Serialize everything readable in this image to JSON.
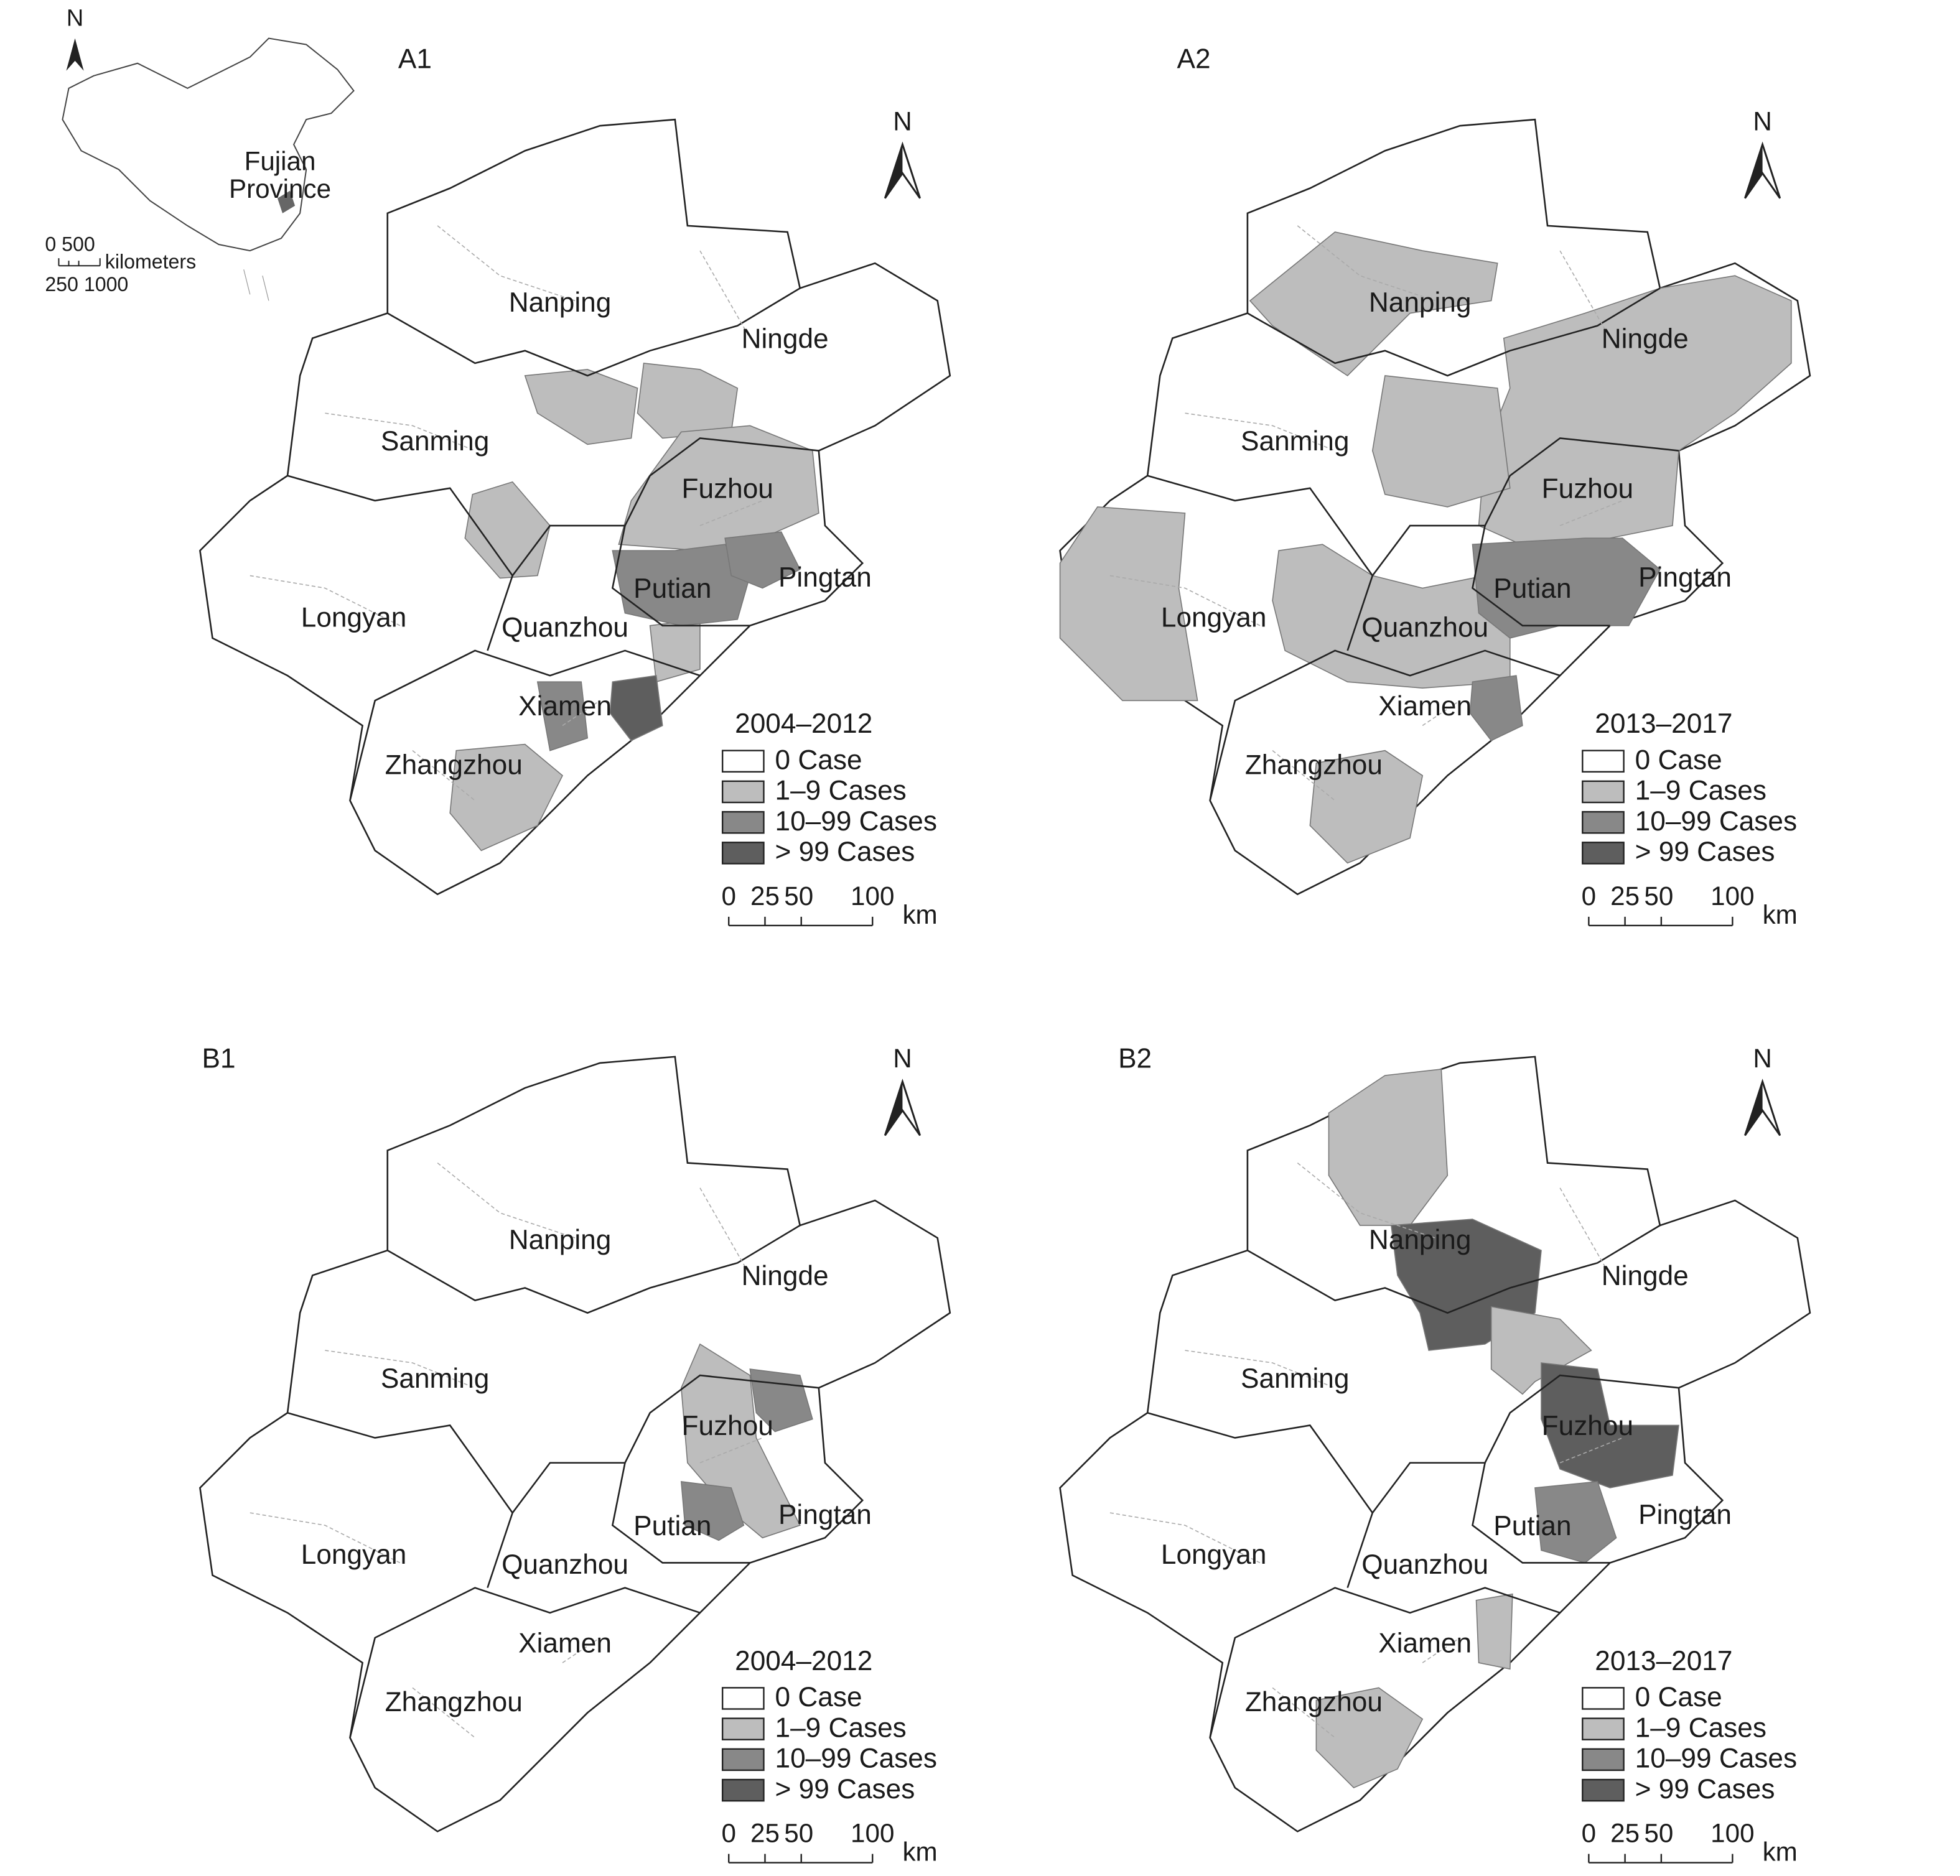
{
  "inset": {
    "north": "N",
    "labels": [
      "Fujian",
      "Province"
    ],
    "scale": {
      "top": "0 500",
      "unit": "kilometers",
      "bottom": "250 1000"
    }
  },
  "panels": [
    {
      "label": "A1",
      "north": "N",
      "cities": [
        "Nanping",
        "Ningde",
        "Sanming",
        "Fuzhou",
        "Pingtan",
        "Putian",
        "Longyan",
        "Quanzhou",
        "Xiamen",
        "Zhangzhou"
      ],
      "legend": {
        "title": "2004–2012",
        "items": [
          "0 Case",
          "1–9 Cases",
          "10–99 Cases",
          "> 99 Cases"
        ]
      },
      "scale": {
        "ticks": [
          "0",
          "25",
          "50",
          "100"
        ],
        "unit": "km"
      }
    },
    {
      "label": "A2",
      "north": "N",
      "cities": [
        "Nanping",
        "Ningde",
        "Sanming",
        "Fuzhou",
        "Pingtan",
        "Putian",
        "Longyan",
        "Quanzhou",
        "Xiamen",
        "Zhangzhou"
      ],
      "legend": {
        "title": "2013–2017",
        "items": [
          "0 Case",
          "1–9 Cases",
          "10–99 Cases",
          "> 99 Cases"
        ]
      },
      "scale": {
        "ticks": [
          "0",
          "25",
          "50",
          "100"
        ],
        "unit": "km"
      }
    },
    {
      "label": "B1",
      "north": "N",
      "cities": [
        "Nanping",
        "Ningde",
        "Sanming",
        "Fuzhou",
        "Pingtan",
        "Putian",
        "Longyan",
        "Quanzhou",
        "Xiamen",
        "Zhangzhou"
      ],
      "legend": {
        "title": "2004–2012",
        "items": [
          "0 Case",
          "1–9 Cases",
          "10–99 Cases",
          "> 99 Cases"
        ]
      },
      "scale": {
        "ticks": [
          "0",
          "25",
          "50",
          "100"
        ],
        "unit": "km"
      }
    },
    {
      "label": "B2",
      "north": "N",
      "cities": [
        "Nanping",
        "Ningde",
        "Sanming",
        "Fuzhou",
        "Pingtan",
        "Putian",
        "Longyan",
        "Quanzhou",
        "Xiamen",
        "Zhangzhou"
      ],
      "legend": {
        "title": "2013–2017",
        "items": [
          "0 Case",
          "1–9 Cases",
          "10–99 Cases",
          "> 99 Cases"
        ]
      },
      "scale": {
        "ticks": [
          "0",
          "25",
          "50",
          "100"
        ],
        "unit": "km"
      }
    }
  ]
}
